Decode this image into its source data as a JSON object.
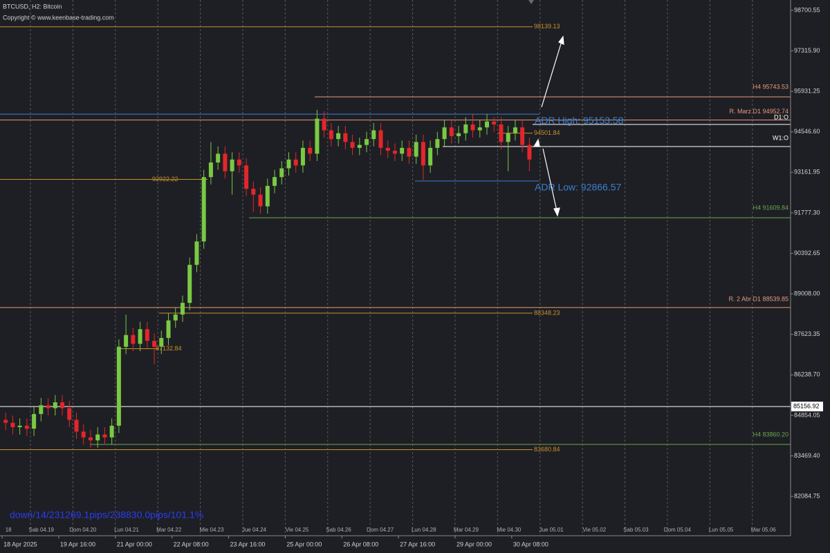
{
  "chart_data": {
    "type": "candlestick",
    "title": "BTCUSD, H2:  Bitcoin",
    "subtitle": "Copyright © www.keenbase-trading.com",
    "annotation": "down/14/231269.1pips/238830.0pips/101.1%",
    "up_color": "#7ac943",
    "down_color": "#e3262b",
    "x": [
      "18 Apr 08:00",
      "18 Apr 12:00",
      "18 Apr 16:00",
      "18 Apr 20:00",
      "19 Apr 00:00",
      "19 Apr 04:00",
      "19 Apr 08:00",
      "19 Apr 12:00",
      "19 Apr 16:00",
      "19 Apr 20:00",
      "20 Apr 00:00",
      "20 Apr 04:00",
      "20 Apr 08:00",
      "20 Apr 12:00",
      "20 Apr 16:00",
      "20 Apr 20:00",
      "21 Apr 00:00",
      "21 Apr 04:00",
      "21 Apr 08:00",
      "21 Apr 12:00",
      "21 Apr 16:00",
      "21 Apr 20:00",
      "22 Apr 00:00",
      "22 Apr 04:00",
      "22 Apr 08:00",
      "22 Apr 12:00",
      "22 Apr 16:00",
      "22 Apr 20:00",
      "23 Apr 00:00",
      "23 Apr 04:00",
      "23 Apr 08:00",
      "23 Apr 12:00",
      "23 Apr 16:00",
      "23 Apr 20:00",
      "24 Apr 00:00",
      "24 Apr 04:00",
      "24 Apr 08:00",
      "24 Apr 12:00",
      "24 Apr 16:00",
      "24 Apr 20:00",
      "25 Apr 00:00",
      "25 Apr 04:00",
      "25 Apr 08:00",
      "25 Apr 12:00",
      "25 Apr 16:00",
      "25 Apr 20:00",
      "26 Apr 00:00",
      "26 Apr 04:00",
      "26 Apr 08:00",
      "26 Apr 12:00",
      "26 Apr 16:00",
      "26 Apr 20:00",
      "27 Apr 00:00",
      "27 Apr 04:00",
      "27 Apr 08:00",
      "27 Apr 12:00",
      "27 Apr 16:00",
      "27 Apr 20:00",
      "28 Apr 00:00",
      "28 Apr 04:00",
      "28 Apr 08:00",
      "28 Apr 12:00",
      "28 Apr 16:00",
      "28 Apr 20:00",
      "29 Apr 00:00",
      "29 Apr 04:00",
      "29 Apr 08:00",
      "29 Apr 12:00",
      "29 Apr 16:00",
      "29 Apr 20:00",
      "30 Apr 00:00",
      "30 Apr 04:00",
      "30 Apr 08:00",
      "30 Apr 12:00",
      "30 Apr 16:00"
    ],
    "open": [
      84700,
      84600,
      84450,
      84500,
      84400,
      84900,
      85200,
      85100,
      85300,
      85100,
      84700,
      84300,
      84100,
      84000,
      84200,
      84100,
      84500,
      87200,
      87600,
      87300,
      87800,
      87400,
      87200,
      87500,
      88100,
      88300,
      88700,
      90000,
      90800,
      93000,
      93500,
      93800,
      93200,
      93600,
      93400,
      92600,
      92400,
      92000,
      92700,
      93000,
      93300,
      93600,
      93400,
      94000,
      93800,
      95000,
      94600,
      94300,
      94500,
      94200,
      94000,
      94100,
      94300,
      94600,
      94000,
      93900,
      93800,
      94000,
      93700,
      94200,
      93400,
      94000,
      94300,
      94700,
      94400,
      94500,
      94800,
      94600,
      94700,
      94900,
      94800,
      94200,
      94500,
      94700,
      94100
    ],
    "high": [
      84950,
      84850,
      84750,
      84750,
      85150,
      85450,
      85450,
      85550,
      85550,
      85350,
      84950,
      84550,
      84350,
      84450,
      84450,
      84750,
      87450,
      88300,
      87850,
      88050,
      88050,
      87650,
      87750,
      88350,
      88550,
      88950,
      90250,
      91050,
      93250,
      94200,
      94050,
      94050,
      93850,
      93850,
      93650,
      92850,
      92650,
      92950,
      93250,
      93550,
      93850,
      93850,
      94250,
      94250,
      95300,
      95250,
      94850,
      94750,
      94750,
      94450,
      94350,
      94550,
      94850,
      94850,
      94250,
      94150,
      94250,
      94250,
      94450,
      94450,
      94250,
      94550,
      94950,
      94950,
      94750,
      95050,
      95150,
      94950,
      95150,
      95050,
      95050,
      94750,
      94950,
      94950,
      94350
    ],
    "low": [
      84350,
      84200,
      84200,
      84150,
      84150,
      84650,
      84850,
      84850,
      84850,
      84450,
      84050,
      83850,
      83750,
      83750,
      83850,
      83850,
      84250,
      86950,
      87050,
      87050,
      87150,
      86600,
      86950,
      87250,
      87850,
      88050,
      88450,
      89750,
      90550,
      92750,
      93250,
      92950,
      92400,
      93150,
      92350,
      91800,
      91750,
      91750,
      92450,
      92750,
      93050,
      93150,
      93150,
      93550,
      93550,
      94350,
      94050,
      94050,
      93950,
      93750,
      93750,
      93850,
      94050,
      93750,
      93650,
      93550,
      93550,
      93450,
      93450,
      92900,
      93150,
      93750,
      94050,
      94150,
      94150,
      94250,
      94350,
      94350,
      94450,
      94550,
      93950,
      93200,
      94250,
      93850,
      93200
    ],
    "close": [
      84600,
      84450,
      84500,
      84400,
      84900,
      85200,
      85100,
      85300,
      85100,
      84700,
      84300,
      84100,
      84000,
      84200,
      84100,
      84500,
      87200,
      87600,
      87300,
      87800,
      87400,
      87200,
      87500,
      88100,
      88300,
      88700,
      90000,
      90800,
      93000,
      93500,
      93800,
      93200,
      93600,
      93400,
      92600,
      92400,
      92000,
      92700,
      93000,
      93300,
      93600,
      93400,
      94000,
      93800,
      95000,
      94600,
      94300,
      94500,
      94200,
      94000,
      94100,
      94300,
      94600,
      94000,
      93900,
      93800,
      94000,
      93700,
      94200,
      93400,
      94000,
      94300,
      94700,
      94400,
      94500,
      94800,
      94600,
      94700,
      94900,
      94800,
      94200,
      94500,
      94700,
      94100,
      93600
    ],
    "ylim": [
      80810,
      99055
    ],
    "yticks": [
      98700.55,
      {
        "value": 97315.9,
        "label": "97315.90"
      },
      95931.25,
      {
        "value": 94546.6,
        "label": "94546.60"
      },
      93161.95,
      {
        "value": 91777.3,
        "label": "91777.30"
      },
      90392.65,
      {
        "value": 89008,
        "label": "89008.00"
      },
      87623.35,
      {
        "value": 86238.7,
        "label": "86238.70"
      },
      84854.05,
      {
        "value": 83469.4,
        "label": "83469.40"
      },
      82084.75
    ],
    "xlim": [
      "18 Apr 06:48",
      "6 May 21:36"
    ],
    "xticks": [
      {
        "value": "18 Apr 08:00",
        "label": "18 Apr 2025"
      },
      "19 Apr 16:00",
      "21 Apr 00:00",
      "22 Apr 08:00",
      "23 Apr 16:00",
      "25 Apr 00:00",
      "26 Apr 08:00",
      "27 Apr 16:00",
      "29 Apr 00:00",
      "30 Apr 08:00"
    ],
    "day_ticks": [
      {
        "value": "18 Apr 00:00",
        "label": "18"
      },
      {
        "value": "19 Apr 00:00",
        "label": "Sab 04.19"
      },
      {
        "value": "20 Apr 00:00",
        "label": "Dom 04.20"
      },
      {
        "value": "21 Apr 00:00",
        "label": "Lun 04.21"
      },
      {
        "value": "22 Apr 00:00",
        "label": "Mar 04.22"
      },
      {
        "value": "23 Apr 00:00",
        "label": "Mie 04.23"
      },
      {
        "value": "24 Apr 00:00",
        "label": "Jue 04.24"
      },
      {
        "value": "25 Apr 00:00",
        "label": "Vie 04.25"
      },
      {
        "value": "26 Apr 00:00",
        "label": "Sab 04.26"
      },
      {
        "value": "27 Apr 00:00",
        "label": "Dom 04.27"
      },
      {
        "value": "28 Apr 00:00",
        "label": "Lun 04.28"
      },
      {
        "value": "29 Apr 00:00",
        "label": "Mar 04.29"
      },
      {
        "value": "30 Apr 00:00",
        "label": "Mie 04.30"
      },
      {
        "value": "1 May 00:00",
        "label": "Jue 05.01"
      },
      {
        "value": "2 May 00:00",
        "label": "Vie 05.02"
      },
      {
        "value": "3 May 00:00",
        "label": "Sab 05.03"
      },
      {
        "value": "4 May 00:00",
        "label": "Dom 05.04"
      },
      {
        "value": "5 May 00:00",
        "label": "Lun 05.05"
      },
      {
        "value": "6 May 00:00",
        "label": "Mar 05.06"
      }
    ],
    "grid": true,
    "levels": [
      {
        "value": 98139.13,
        "color": "#c8902c"
      },
      {
        "value": 95743.53,
        "label": "H4 95743.53",
        "color": "#e89a7a"
      },
      {
        "value": 94952.74,
        "label": "R. Marz D1 94952.74",
        "color": "#e89a7a"
      },
      {
        "value": 95153.58,
        "label": "ADR High: 95153.58",
        "color": "#3a7fd0"
      },
      {
        "value": 94800,
        "label": "D1:O",
        "color": "#ffffff"
      },
      {
        "value": 94045,
        "label": "W1:O",
        "color": "#ffffff"
      },
      {
        "value": 94501.84,
        "color": "#c8902c"
      },
      {
        "value": 92922.22,
        "color": "#c8902c"
      },
      {
        "value": 92866.57,
        "label": "ADR Low: 92866.57",
        "color": "#3a7fd0"
      },
      {
        "value": 91609.84,
        "label": "H4 91609.84",
        "color": "#6aa84f"
      },
      {
        "value": 88539.85,
        "label": "R. 2 Abr D1 88539.85",
        "color": "#e89a7a"
      },
      {
        "value": 88348.23,
        "color": "#c8902c"
      },
      {
        "value": 87132.84,
        "color": "#c8902c"
      },
      {
        "value": 85156.92,
        "color": "#ffffff"
      },
      {
        "value": 83860.2,
        "label": "H4 83860.20",
        "color": "#6aa84f"
      },
      {
        "value": 83680.84,
        "color": "#c8902c"
      }
    ]
  }
}
